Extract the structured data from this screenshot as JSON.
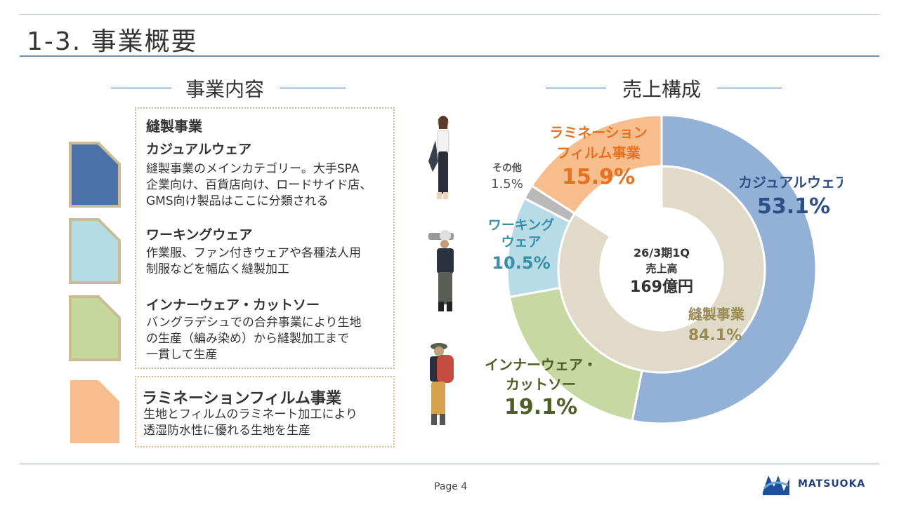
{
  "header": {
    "title": "1-3. 事業概要"
  },
  "left": {
    "heading": "事業内容",
    "sewing_title": "縫製事業",
    "items": [
      {
        "title": "カジュアルウェア",
        "lines": [
          "縫製事業のメインカテゴリー。大手SPA",
          "企業向け、百貨店向け、ロードサイド店、",
          "GMS向け製品はここに分類される"
        ],
        "color": "#4a72a9"
      },
      {
        "title": "ワーキングウェア",
        "lines": [
          "作業服、ファン付きウェアや各種法人用",
          "制服などを幅広く縫製加工"
        ],
        "color": "#b5dbe6"
      },
      {
        "title": "インナーウェア・カットソー",
        "lines": [
          "バングラデシュでの合弁事業により生地",
          "の生産（編み染め）から縫製加工まで",
          "一貫して生産"
        ],
        "color": "#c6d79c"
      },
      {
        "title": "ラミネーションフィルム事業",
        "lines": [
          "生地とフィルムのラミネート加工により",
          "透湿防水性に優れる生地を生産"
        ],
        "color": "#f7bd8e"
      }
    ]
  },
  "right": {
    "heading": "売上構成"
  },
  "chart_data": {
    "type": "pie",
    "style": "doughnut (two rings)",
    "center_label": [
      "26/3期1Q",
      "売上高",
      "169億円"
    ],
    "outer": {
      "slices": [
        {
          "name": "カジュアルウェア",
          "value": 53.1,
          "label": "53.1%",
          "color": "#93b1d6",
          "text_color": "#2d4f86"
        },
        {
          "name": "インナーウェア・カットソー",
          "value": 19.1,
          "label": "19.1%",
          "color": "#c7d8a2",
          "text_color": "#4f5e25"
        },
        {
          "name": "ワーキングウェア",
          "value": 10.5,
          "label": "10.5%",
          "color": "#b7dce8",
          "text_color": "#3a8fa8"
        },
        {
          "name": "その他",
          "value": 1.5,
          "label": "1.5%",
          "color": "#b9b9b9",
          "text_color": "#555555"
        },
        {
          "name": "ラミネーションフィルム事業",
          "value": 15.9,
          "label": "15.9%",
          "color": "#f8bd8c",
          "text_color": "#e37224"
        }
      ]
    },
    "inner": {
      "slices": [
        {
          "name": "縫製事業",
          "value": 84.1,
          "label": "84.1%",
          "color": "#e0dbc8",
          "text_color": "#9a8a55"
        }
      ]
    },
    "display_names": {
      "casual": [
        "カジュアルウェア"
      ],
      "inner": [
        "インナーウェア・",
        "カットソー"
      ],
      "working": [
        "ワーキング",
        "ウェア"
      ],
      "other": [
        "その他"
      ],
      "lamination": [
        "ラミネーション",
        "フィルム事業"
      ],
      "sewing": [
        "縫製事業"
      ]
    }
  },
  "footer": {
    "page": "Page 4",
    "logo": "MATSUOKA"
  }
}
